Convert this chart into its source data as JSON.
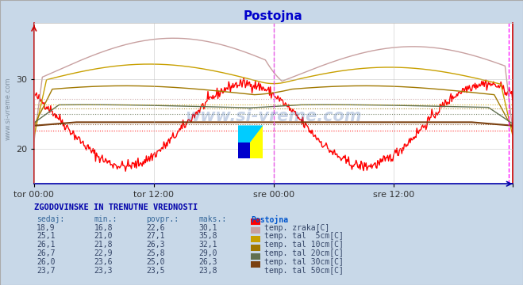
{
  "title": "Postojna",
  "title_color": "#0000cc",
  "bg_color": "#c8d8e8",
  "plot_bg_color": "#ffffff",
  "grid_color": "#c0c0c0",
  "ylim": [
    15,
    38
  ],
  "yticks": [
    20,
    30
  ],
  "n_points": 576,
  "x_tick_positions": [
    0,
    144,
    288,
    432,
    575
  ],
  "x_tick_labels": [
    "tor 00:00",
    "tor 12:00",
    "sre 00:00",
    "sre 12:00",
    ""
  ],
  "vline_positions": [
    288,
    570
  ],
  "vline_color": "#ff00ff",
  "series": [
    {
      "label": "temp. zraka[C]",
      "color": "#ff0000",
      "avg": 22.6,
      "min": 16.8,
      "max": 30.1,
      "sedaj": 18.9
    },
    {
      "label": "temp. tal  5cm[C]",
      "color": "#c8a0a0",
      "avg": 27.1,
      "min": 21.0,
      "max": 35.8,
      "sedaj": 25.1
    },
    {
      "label": "temp. tal 10cm[C]",
      "color": "#c8a000",
      "avg": 26.3,
      "min": 21.8,
      "max": 32.1,
      "sedaj": 26.1
    },
    {
      "label": "temp. tal 20cm[C]",
      "color": "#a07800",
      "avg": 25.8,
      "min": 22.9,
      "max": 29.0,
      "sedaj": 26.7
    },
    {
      "label": "temp. tal 30cm[C]",
      "color": "#607050",
      "avg": 25.0,
      "min": 23.6,
      "max": 26.3,
      "sedaj": 26.0
    },
    {
      "label": "temp. tal 50cm[C]",
      "color": "#7a4010",
      "avg": 23.5,
      "min": 23.3,
      "max": 23.8,
      "sedaj": 23.7
    }
  ],
  "watermark": "www.si-vreme.com",
  "watermark_color": "#2050a0",
  "watermark_alpha": 0.25,
  "table_header": "ZGODOVINSKE IN TRENUTNE VREDNOSTI",
  "table_col_headers": [
    "sedaj:",
    "min.:",
    "povpr.:",
    "maks.:",
    "Postojna"
  ],
  "table_rows": [
    [
      "18,9",
      "16,8",
      "22,6",
      "30,1",
      "temp. zraka[C]"
    ],
    [
      "25,1",
      "21,0",
      "27,1",
      "35,8",
      "temp. tal  5cm[C]"
    ],
    [
      "26,1",
      "21,8",
      "26,3",
      "32,1",
      "temp. tal 10cm[C]"
    ],
    [
      "26,7",
      "22,9",
      "25,8",
      "29,0",
      "temp. tal 20cm[C]"
    ],
    [
      "26,0",
      "23,6",
      "25,0",
      "26,3",
      "temp. tal 30cm[C]"
    ],
    [
      "23,7",
      "23,3",
      "23,5",
      "23,8",
      "temp. tal 50cm[C]"
    ]
  ],
  "legend_colors": [
    "#ff0000",
    "#c8a0a0",
    "#c8a000",
    "#a07800",
    "#607050",
    "#7a4010"
  ]
}
